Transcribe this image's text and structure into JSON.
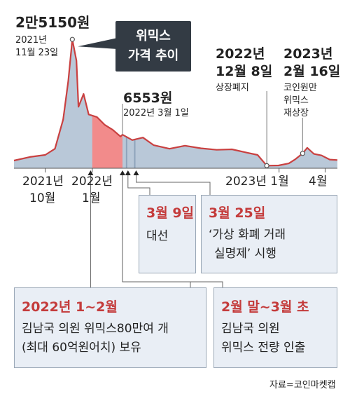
{
  "chart_data": {
    "type": "area",
    "title": "위믹스 가격 추이",
    "x_ticks": [
      {
        "label": "2021년 10월",
        "x": "2021-10"
      },
      {
        "label": "2022년 1월",
        "x": "2022-01"
      },
      {
        "label": "2023년 1월",
        "x": "2023-01"
      },
      {
        "label": "4월",
        "x": "2023-04"
      }
    ],
    "series": [
      {
        "unit": "원",
        "points": [
          [
            "2021-08-01",
            1500
          ],
          [
            "2021-09-01",
            2200
          ],
          [
            "2021-10-01",
            2600
          ],
          [
            "2021-10-20",
            3800
          ],
          [
            "2021-11-05",
            9500
          ],
          [
            "2021-11-15",
            17000
          ],
          [
            "2021-11-23",
            25150
          ],
          [
            "2021-12-01",
            21000
          ],
          [
            "2021-12-05",
            12000
          ],
          [
            "2021-12-15",
            14500
          ],
          [
            "2021-12-25",
            10500
          ],
          [
            "2022-01-10",
            10000
          ],
          [
            "2022-01-25",
            8500
          ],
          [
            "2022-02-10",
            7500
          ],
          [
            "2022-02-25",
            6200
          ],
          [
            "2022-03-01",
            6553
          ],
          [
            "2022-03-20",
            5500
          ],
          [
            "2022-04-10",
            6000
          ],
          [
            "2022-05-01",
            4500
          ],
          [
            "2022-06-01",
            3800
          ],
          [
            "2022-07-01",
            4400
          ],
          [
            "2022-08-01",
            3900
          ],
          [
            "2022-09-01",
            3600
          ],
          [
            "2022-10-01",
            3700
          ],
          [
            "2022-11-01",
            3000
          ],
          [
            "2022-11-20",
            2600
          ],
          [
            "2022-12-08",
            500
          ],
          [
            "2022-12-31",
            550
          ],
          [
            "2023-01-20",
            950
          ],
          [
            "2023-02-01",
            1700
          ],
          [
            "2023-02-16",
            2900
          ],
          [
            "2023-02-25",
            4000
          ],
          [
            "2023-03-10",
            2800
          ],
          [
            "2023-03-25",
            2500
          ],
          [
            "2023-04-10",
            1700
          ],
          [
            "2023-04-25",
            1600
          ]
        ]
      }
    ],
    "highlight": {
      "from": "2022-01-01",
      "to": "2022-03-01",
      "color": "#f28b8b"
    },
    "annotations": [
      {
        "x": "2021-11-23",
        "value": "2만5150원",
        "date": "2021년 11월 23일"
      },
      {
        "x": "2022-03-01",
        "value": "6553원",
        "date": "2022년 3월 1일"
      },
      {
        "x": "2022-12-08",
        "title": "2022년 12월 8일",
        "note": "상장폐지"
      },
      {
        "x": "2023-02-16",
        "title": "2023년 2월 16일",
        "note": "코인원만 위믹스 재상장"
      }
    ]
  },
  "labels": {
    "peak_value": "2만5150원",
    "peak_date_1": "2021년",
    "peak_date_2": "11월 23일",
    "callout_1": "위믹스",
    "callout_2": "가격 추이",
    "mid_value": "6553원",
    "mid_date": "2022년 3월 1일",
    "delist_1": "2022년",
    "delist_2": "12월 8일",
    "delist_note": "상장폐지",
    "relist_1": "2023년",
    "relist_2": "2월 16일",
    "relist_note_1": "코인원만",
    "relist_note_2": "위믹스",
    "relist_note_3": "재상장",
    "tick_2021_y": "2021년",
    "tick_2021_m": "10월",
    "tick_2022_y": "2022년",
    "tick_2022_m": "1월",
    "tick_2023": "2023년 1월",
    "tick_apr": "4월"
  },
  "boxes": {
    "election_title": "3월 9일",
    "election_body": "대선",
    "law_title": "3월 25일",
    "law_body_1": "‘가상 화폐 거래",
    "law_body_2": "실명제’ 시행",
    "hold_title": "2022년 1~2월",
    "hold_body_1": "김남국 의원 위믹스80만여 개",
    "hold_body_2": "(최대 60억원어치) 보유",
    "withdraw_title": "2월 말~3월 초",
    "withdraw_body_1": "김남국 의원",
    "withdraw_body_2": "위믹스 전량 인출"
  },
  "source": "자료=코인마켓캡",
  "colors": {
    "line": "#c94040",
    "area": "#b9c8d8",
    "highlight": "#f28b8b",
    "accent": "#c43b3b"
  }
}
